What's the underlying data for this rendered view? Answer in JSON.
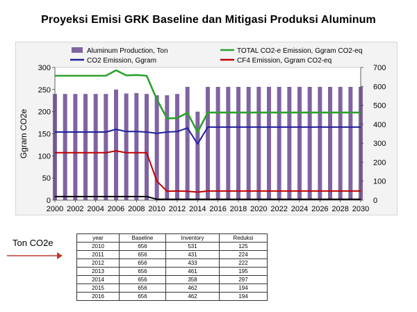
{
  "chart_data": {
    "type": "bar+line",
    "title": "Proyeksi Emisi GRK Baseline dan Mitigasi Produksi Aluminum",
    "ylabel": "Ggram CO2e",
    "ylim": [
      0,
      300
    ],
    "y2lim": [
      0,
      700
    ],
    "y_ticks": [
      0,
      50,
      100,
      150,
      200,
      250,
      300
    ],
    "y2_ticks": [
      0,
      100,
      200,
      300,
      400,
      500,
      600,
      700
    ],
    "x": [
      2000,
      2001,
      2002,
      2003,
      2004,
      2005,
      2006,
      2007,
      2008,
      2009,
      2010,
      2011,
      2012,
      2013,
      2014,
      2015,
      2016,
      2017,
      2018,
      2019,
      2020,
      2021,
      2022,
      2023,
      2024,
      2025,
      2026,
      2027,
      2028,
      2029,
      2030
    ],
    "x_tick_labels": [
      "2000",
      "2002",
      "2004",
      "2006",
      "2008",
      "2010",
      "2012",
      "2014",
      "2016",
      "2018",
      "2020",
      "2022",
      "2024",
      "2026",
      "2028",
      "2030"
    ],
    "legend_position": "top",
    "bars": {
      "name": "Aluminum Production, Ton",
      "axis": "left",
      "color": "#8064a2",
      "values": [
        240,
        240,
        240,
        240,
        240,
        240,
        250,
        241,
        242,
        240,
        237,
        237,
        240,
        256,
        200,
        256,
        256,
        256,
        256,
        256,
        256,
        256,
        256,
        256,
        256,
        256,
        256,
        256,
        256,
        256,
        256
      ]
    },
    "series": [
      {
        "name": "TOTAL CO2-e Emission, Ggram CO2-eq",
        "axis": "right",
        "color": "#2ca02c",
        "values": [
          656,
          656,
          656,
          656,
          656,
          656,
          685,
          658,
          660,
          656,
          531,
          431,
          433,
          461,
          358,
          462,
          462,
          462,
          462,
          462,
          462,
          462,
          462,
          462,
          462,
          462,
          462,
          462,
          462,
          462,
          462
        ]
      },
      {
        "name": "CO2 Emission, Ggram",
        "axis": "left",
        "color": "#1f1f9e",
        "values": [
          154,
          154,
          154,
          154,
          154,
          154,
          160,
          155,
          155,
          154,
          151,
          154,
          155,
          163,
          127,
          165,
          165,
          165,
          165,
          165,
          165,
          165,
          165,
          165,
          165,
          165,
          165,
          165,
          165,
          165,
          165
        ]
      },
      {
        "name": "CF4 Emission, Ggram CO2-eq",
        "axis": "right",
        "color": "#c00000",
        "values": [
          250,
          250,
          250,
          250,
          250,
          250,
          260,
          250,
          250,
          250,
          100,
          47,
          48,
          47,
          42,
          48,
          48,
          48,
          48,
          48,
          48,
          48,
          48,
          48,
          48,
          48,
          48,
          48,
          48,
          48,
          48
        ]
      },
      {
        "name": "",
        "axis": "left",
        "color": "#000000",
        "values": [
          8,
          8,
          8,
          8,
          8,
          8,
          8,
          8,
          8,
          8,
          2,
          2,
          2,
          2,
          2,
          2,
          2,
          2,
          2,
          2,
          2,
          2,
          2,
          2,
          2,
          2,
          2,
          2,
          2,
          2,
          2
        ]
      }
    ]
  },
  "unit_label": "Ton CO2e",
  "table": {
    "columns": [
      "year",
      "Baseline",
      "Inventory",
      "Reduksi"
    ],
    "rows": [
      [
        "2010",
        "656",
        "531",
        "125"
      ],
      [
        "2011",
        "656",
        "431",
        "224"
      ],
      [
        "2012",
        "656",
        "433",
        "222"
      ],
      [
        "2013",
        "656",
        "461",
        "195"
      ],
      [
        "2014",
        "656",
        "358",
        "297"
      ],
      [
        "2015",
        "656",
        "462",
        "194"
      ],
      [
        "2016",
        "656",
        "462",
        "194"
      ]
    ]
  }
}
